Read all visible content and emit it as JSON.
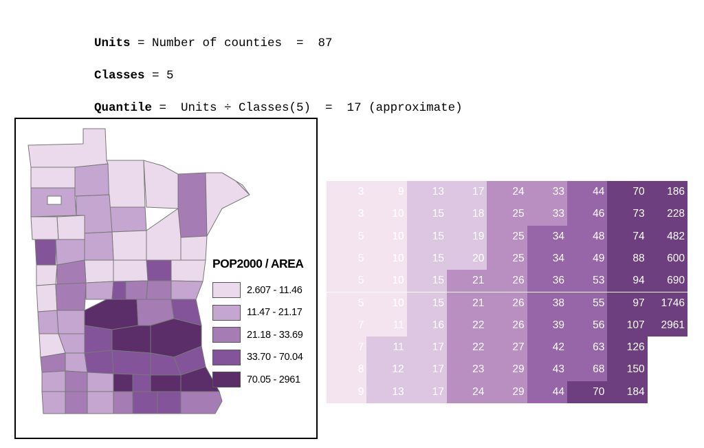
{
  "formula": {
    "line1_key": "Units",
    "line1_rest": " = Number of counties  =  87",
    "line2_key": "Classes",
    "line2_rest": " = 5",
    "line3_key": "Quantile",
    "line3_rest": " =  Units ÷ Classes(5)  =  17 (approximate)"
  },
  "legend": {
    "title": "POP2000 / AREA",
    "classes": [
      {
        "label": "2.607 - 11.46",
        "color": "#ebdaeb"
      },
      {
        "label": "11.47 - 21.17",
        "color": "#c4a6d0"
      },
      {
        "label": "21.18 - 33.69",
        "color": "#a67cb5"
      },
      {
        "label": "33.70 - 70.04",
        "color": "#83549a"
      },
      {
        "label": "70.05 - 2961",
        "color": "#5b2d69"
      }
    ]
  },
  "table": {
    "columns": [
      [
        "3",
        "3",
        "5",
        "5",
        "5",
        "5",
        "7",
        "7",
        "8",
        "9"
      ],
      [
        "9",
        "10",
        "10",
        "10",
        "10",
        "10",
        "11",
        "11",
        "12",
        "13"
      ],
      [
        "13",
        "15",
        "15",
        "15",
        "15",
        "15",
        "16",
        "17",
        "17",
        "17"
      ],
      [
        "17",
        "18",
        "19",
        "20",
        "21",
        "21",
        "22",
        "22",
        "23",
        "24"
      ],
      [
        "24",
        "25",
        "25",
        "25",
        "26",
        "26",
        "26",
        "27",
        "29",
        "29"
      ],
      [
        "33",
        "33",
        "34",
        "34",
        "36",
        "38",
        "39",
        "42",
        "43",
        "44"
      ],
      [
        "44",
        "46",
        "48",
        "49",
        "53",
        "55",
        "56",
        "63",
        "68",
        "70"
      ],
      [
        "70",
        "73",
        "74",
        "88",
        "94",
        "97",
        "107",
        "126",
        "150",
        "184"
      ],
      [
        "186",
        "228",
        "482",
        "600",
        "690",
        "1746",
        "2961"
      ]
    ],
    "class_colors": [
      "#f3e4f0",
      "#dcc6e2",
      "#b98fc2",
      "#9766a8",
      "#6e3f7f"
    ]
  }
}
